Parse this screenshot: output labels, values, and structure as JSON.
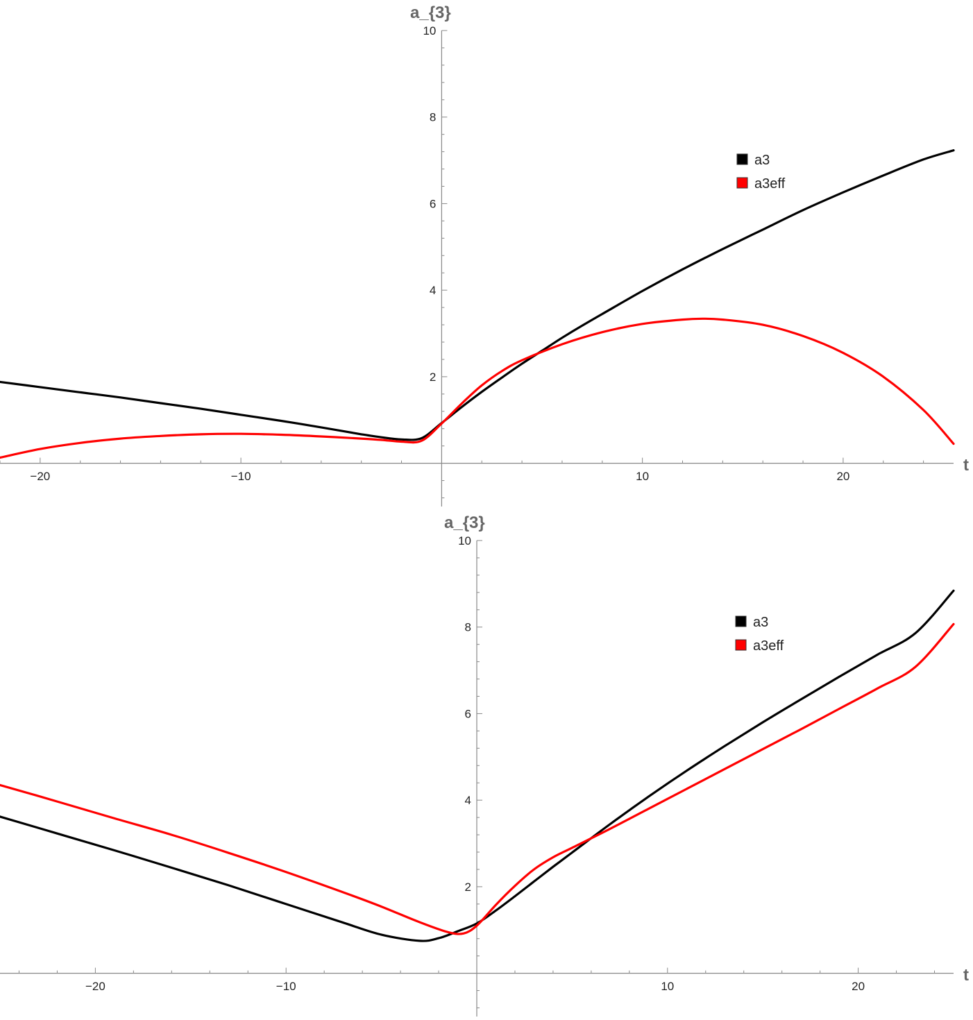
{
  "chart_data": [
    {
      "type": "line",
      "xlabel": "t",
      "ylabel": "a_{3}",
      "xlim": [
        -22,
        25.5
      ],
      "ylim": [
        -1,
        10
      ],
      "x_ticks": [
        "-20",
        "-10",
        "10",
        "20"
      ],
      "y_ticks": [
        "2",
        "4",
        "6",
        "8",
        "10"
      ],
      "legend_position": "top-right",
      "series": [
        {
          "name": "a3",
          "color": "#000000",
          "x": [
            -22,
            -20,
            -18,
            -16,
            -14,
            -12,
            -10,
            -8,
            -6,
            -4,
            -3,
            -2,
            -1,
            0,
            1,
            2,
            3,
            4,
            5,
            6,
            7,
            8,
            10,
            12,
            14,
            16,
            18,
            20,
            22,
            24,
            25.5
          ],
          "y": [
            1.88,
            1.76,
            1.64,
            1.52,
            1.39,
            1.26,
            1.12,
            0.98,
            0.83,
            0.67,
            0.6,
            0.55,
            0.58,
            0.93,
            1.3,
            1.65,
            1.98,
            2.3,
            2.6,
            2.9,
            3.18,
            3.45,
            3.98,
            4.48,
            4.95,
            5.4,
            5.85,
            6.26,
            6.65,
            7.02,
            7.23
          ]
        },
        {
          "name": "a3eff",
          "color": "#ff0000",
          "x": [
            -22,
            -20,
            -18,
            -16,
            -14,
            -12,
            -10,
            -8,
            -6,
            -4,
            -3,
            -2,
            -1,
            0,
            1,
            2,
            3,
            4,
            6,
            8,
            10,
            12,
            13,
            14,
            16,
            18,
            20,
            22,
            24,
            25.5
          ],
          "y": [
            0.13,
            0.33,
            0.47,
            0.57,
            0.63,
            0.67,
            0.68,
            0.66,
            0.62,
            0.57,
            0.54,
            0.5,
            0.52,
            0.92,
            1.38,
            1.8,
            2.13,
            2.38,
            2.75,
            3.03,
            3.22,
            3.32,
            3.34,
            3.32,
            3.2,
            2.94,
            2.55,
            2.0,
            1.23,
            0.45
          ]
        }
      ]
    },
    {
      "type": "line",
      "xlabel": "t",
      "ylabel": "a_{3}",
      "xlim": [
        -25,
        25
      ],
      "ylim": [
        -1,
        10
      ],
      "x_ticks": [
        "-20",
        "-10",
        "10",
        "20"
      ],
      "y_ticks": [
        "2",
        "4",
        "6",
        "8",
        "10"
      ],
      "legend_position": "top-right",
      "series": [
        {
          "name": "a3",
          "color": "#000000",
          "x": [
            -25,
            -22,
            -19,
            -16,
            -13,
            -10,
            -7,
            -5,
            -3,
            -2,
            -1,
            0,
            1,
            2,
            3,
            4,
            5,
            7,
            9,
            11,
            13,
            15,
            17,
            19,
            21,
            23,
            25
          ],
          "y": [
            3.62,
            3.23,
            2.84,
            2.44,
            2.03,
            1.6,
            1.17,
            0.89,
            0.75,
            0.81,
            0.97,
            1.15,
            1.45,
            1.78,
            2.12,
            2.46,
            2.79,
            3.45,
            4.08,
            4.68,
            5.25,
            5.8,
            6.33,
            6.85,
            7.36,
            7.86,
            8.84
          ]
        },
        {
          "name": "a3eff",
          "color": "#ff0000",
          "x": [
            -25,
            -22,
            -19,
            -16,
            -13,
            -10,
            -7,
            -5,
            -3,
            -1.5,
            -0.7,
            0,
            1,
            2,
            3,
            4,
            5,
            7,
            9,
            11,
            13,
            15,
            17,
            19,
            21,
            23,
            25
          ],
          "y": [
            4.35,
            3.97,
            3.58,
            3.2,
            2.78,
            2.34,
            1.87,
            1.54,
            1.18,
            0.95,
            0.92,
            1.1,
            1.58,
            2.02,
            2.4,
            2.68,
            2.9,
            3.34,
            3.8,
            4.26,
            4.72,
            5.18,
            5.64,
            6.11,
            6.58,
            7.08,
            8.07
          ]
        }
      ]
    }
  ]
}
